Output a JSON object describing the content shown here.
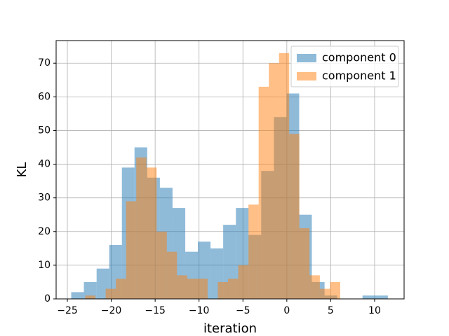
{
  "chart_data": {
    "type": "histogram",
    "xlabel": "iteration",
    "ylabel": "KL",
    "xlim": [
      -26.28,
      13.36
    ],
    "ylim": [
      0,
      76.7
    ],
    "xticks": [
      {
        "value": -25,
        "label": "−25"
      },
      {
        "value": -20,
        "label": "−20"
      },
      {
        "value": -15,
        "label": "−15"
      },
      {
        "value": -10,
        "label": "−10"
      },
      {
        "value": -5,
        "label": "−5"
      },
      0,
      5,
      10
    ],
    "yticks": [
      0,
      10,
      20,
      30,
      40,
      50,
      60,
      70
    ],
    "grid": true,
    "legend": "upper right",
    "alpha": 0.5,
    "series": [
      {
        "name": "component 0",
        "color": "#1f77b4",
        "bins": [
          -24.56,
          -23.12,
          -21.67,
          -20.23,
          -18.79,
          -17.35,
          -15.9,
          -14.46,
          -13.02,
          -11.57,
          -10.13,
          -8.69,
          -7.25,
          -5.8,
          -4.36,
          -2.92,
          -1.47,
          -0.03,
          1.41,
          2.85,
          4.3,
          5.74,
          7.18,
          8.62,
          10.07,
          11.51
        ],
        "values": [
          2,
          5,
          9,
          16,
          39,
          45,
          36,
          33,
          27,
          14,
          17,
          15,
          22,
          27,
          19,
          38,
          54,
          61,
          25,
          5,
          1,
          0,
          0,
          1,
          1
        ]
      },
      {
        "name": "component 1",
        "color": "#ff7f0e",
        "bins": [
          -22.96,
          -21.8,
          -20.64,
          -19.48,
          -18.31,
          -17.15,
          -15.99,
          -14.83,
          -13.67,
          -12.51,
          -11.34,
          -10.18,
          -9.02,
          -7.86,
          -6.7,
          -5.54,
          -4.37,
          -3.21,
          -2.05,
          -0.89,
          0.27,
          1.43,
          2.59,
          3.76,
          4.92,
          6.08
        ],
        "values": [
          1,
          0,
          3,
          6,
          29,
          42,
          39,
          20,
          14,
          7,
          6,
          6,
          0,
          5,
          6,
          10,
          28,
          63,
          70,
          73,
          49,
          21,
          7,
          3,
          5
        ]
      }
    ]
  }
}
